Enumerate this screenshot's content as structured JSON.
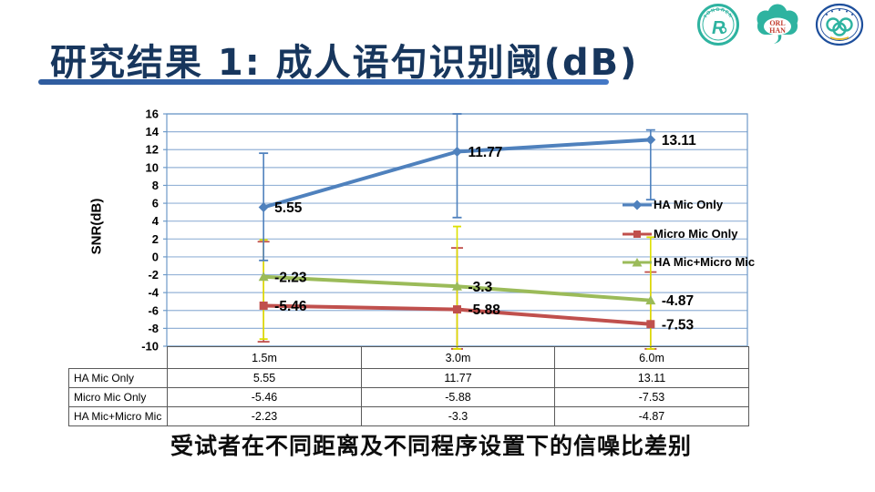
{
  "slide": {
    "title": "研究结果 1: 成人语句识别阈(dB)",
    "caption": "受试者在不同距离及不同程序设置下的信噪比差别",
    "title_color": "#17365D",
    "underline_color": "#3465A8"
  },
  "logos": {
    "tongren": {
      "arc_text": "TONGREN",
      "monogram": "R",
      "color": "#2EB3A0"
    },
    "orl_han": {
      "line1": "ORL",
      "line2": "HAN",
      "shape_color": "#2EB3A0",
      "text_color": "#C23B2E"
    },
    "emblem": {
      "ring_color": "#1E4F9C",
      "knot_color": "#2EB3A0"
    }
  },
  "chart_data": {
    "type": "line",
    "title": "",
    "xlabel": "",
    "ylabel": "SNR(dB)",
    "categories": [
      "1.5m",
      "3.0m",
      "6.0m"
    ],
    "series": [
      {
        "name": "HA Mic Only",
        "values": [
          5.55,
          11.77,
          13.11
        ],
        "labels": [
          "5.55",
          "11.77",
          "13.11"
        ],
        "color": "#4F81BD",
        "marker": "diamond"
      },
      {
        "name": "Micro Mic Only",
        "values": [
          -5.46,
          -5.88,
          -7.53
        ],
        "labels": [
          "-5.46",
          "-5.88",
          "-7.53"
        ],
        "color": "#C0504D",
        "marker": "square"
      },
      {
        "name": "HA Mic+Micro Mic",
        "values": [
          -2.23,
          -3.3,
          -4.87
        ],
        "labels": [
          "-2.23",
          "-3.3",
          "-4.87"
        ],
        "color": "#9BBB59",
        "marker": "triangle"
      }
    ],
    "error_bars": [
      {
        "series": "HA Mic Only",
        "color": "#4F81BD",
        "cap": 5,
        "ranges": [
          [
            -0.4,
            11.6
          ],
          [
            4.4,
            16.0
          ],
          [
            6.4,
            14.2
          ]
        ]
      },
      {
        "series": "Micro Mic Only",
        "color": "#C0504D",
        "cap": 6.5,
        "ranges": [
          [
            -9.5,
            1.7
          ],
          [
            -10.3,
            1.0
          ],
          [
            -10.3,
            -1.7
          ]
        ]
      },
      {
        "series": "HA Mic+Micro Mic",
        "color": "#DDE000",
        "cap": 4.5,
        "ranges": [
          [
            -9.2,
            1.9
          ],
          [
            -10.3,
            3.4
          ],
          [
            -10.3,
            2.2
          ]
        ]
      }
    ],
    "ylim": [
      -10,
      16
    ],
    "ytick_step": 2,
    "grid": true,
    "legend_position": "inside-right",
    "colors": {
      "grid": "#95B3D7",
      "axis": "#6D9AC9"
    }
  },
  "data_table": {
    "col_headers": [
      "1.5m",
      "3.0m",
      "6.0m"
    ],
    "rows": [
      {
        "label": "HA Mic Only",
        "values": [
          "5.55",
          "11.77",
          "13.11"
        ]
      },
      {
        "label": "Micro Mic Only",
        "values": [
          "-5.46",
          "-5.88",
          "-7.53"
        ]
      },
      {
        "label": "HA Mic+Micro Mic",
        "values": [
          "-2.23",
          "-3.3",
          "-4.87"
        ]
      }
    ]
  }
}
